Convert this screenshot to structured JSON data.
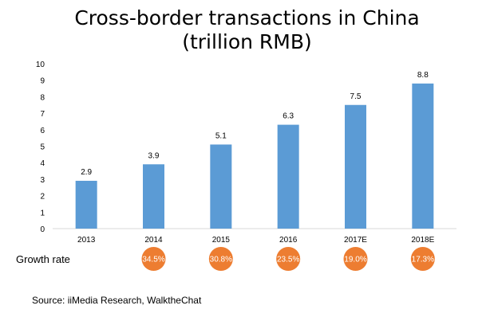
{
  "chart_data": {
    "type": "bar",
    "title": [
      "Cross-border transactions in China",
      "(trillion RMB)"
    ],
    "categories": [
      "2013",
      "2014",
      "2015",
      "2016",
      "2017E",
      "2018E"
    ],
    "values": [
      2.9,
      3.9,
      5.1,
      6.3,
      7.5,
      8.8
    ],
    "data_labels": [
      "2.9",
      "3.9",
      "5.1",
      "6.3",
      "7.5",
      "8.8"
    ],
    "ylim": [
      0,
      10
    ],
    "yticks": [
      "0",
      "1",
      "2",
      "3",
      "4",
      "5",
      "6",
      "7",
      "8",
      "9",
      "10"
    ],
    "grid": false,
    "bar_color": "#5b9bd5",
    "growth_rate": {
      "label": "Growth rate",
      "values": [
        "",
        "34.5%",
        "30.8%",
        "23.5%",
        "19.0%",
        "17.3%"
      ],
      "color": "#ed7d31"
    }
  },
  "source": "Source: iiMedia Research, WalktheChat"
}
